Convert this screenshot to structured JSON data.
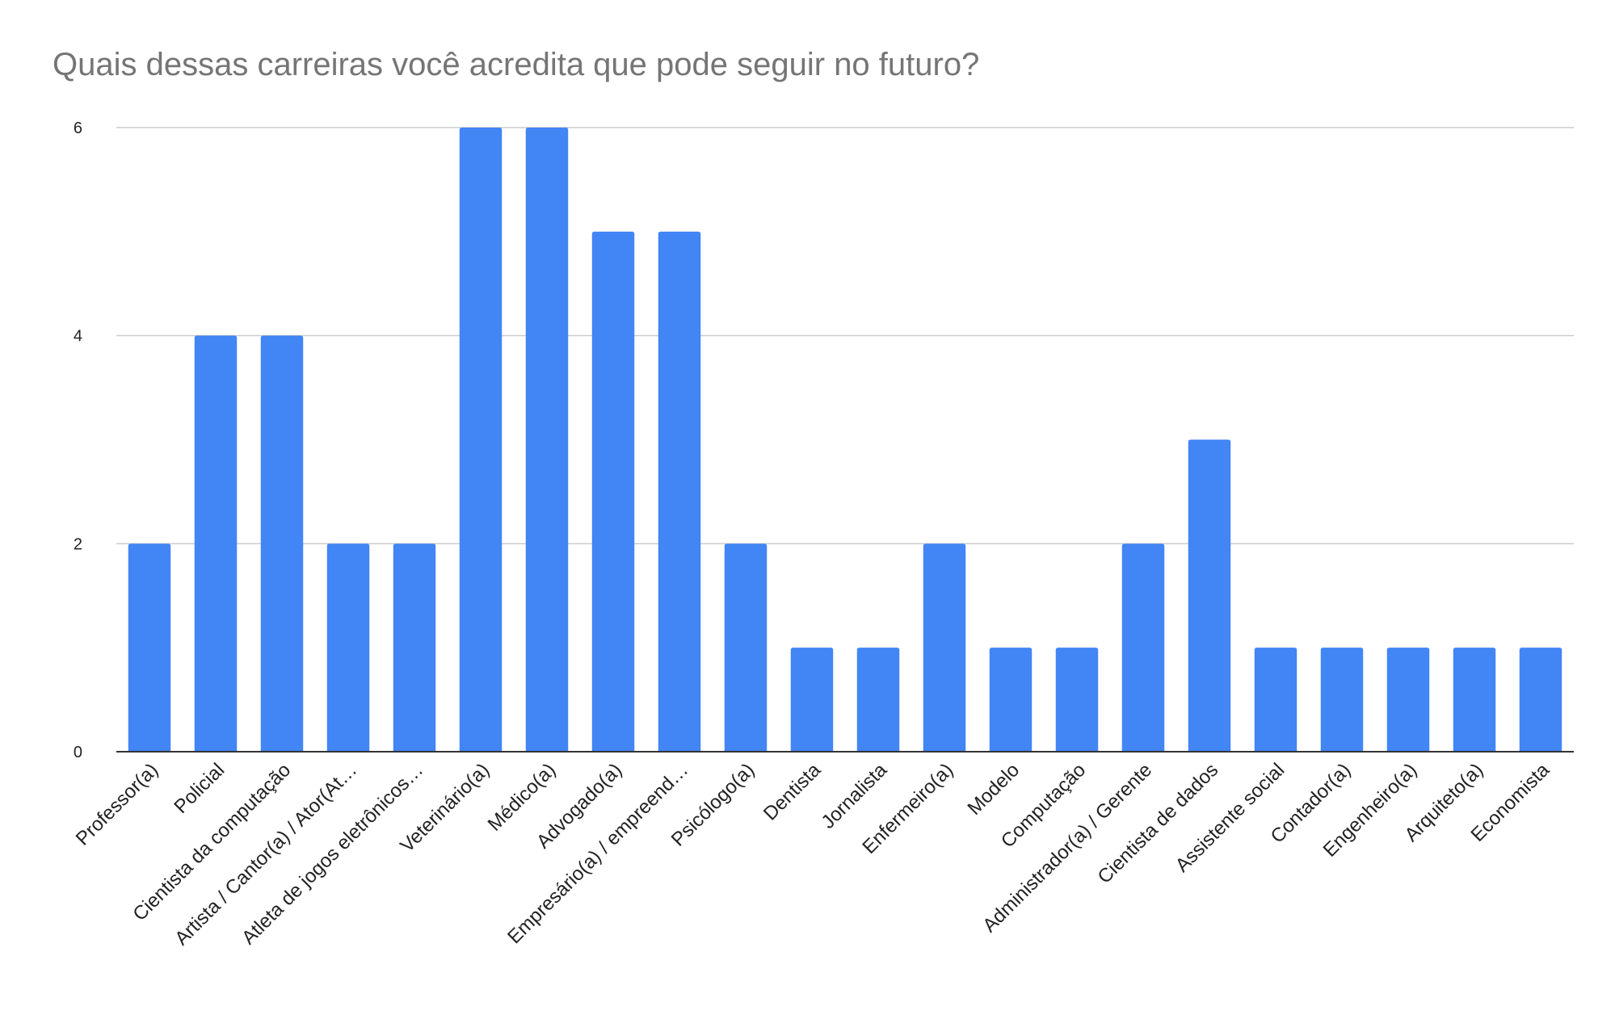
{
  "chart_data": {
    "type": "bar",
    "title": "Quais dessas carreiras você acredita que pode seguir no futuro?",
    "xlabel": "",
    "ylabel": "",
    "ylim": [
      0,
      6
    ],
    "yticks": [
      0,
      2,
      4,
      6
    ],
    "grid": true,
    "bar_color": "#4285F4",
    "categories": [
      "Professor(a)",
      "Policial",
      "Cientista da computação",
      "Artista / Cantor(a) / Ator(At…",
      "Atleta de jogos eletrônicos…",
      "Veterinário(a)",
      "Médico(a)",
      "Advogado(a)",
      "Empresário(a) / empreend…",
      "Psicólogo(a)",
      "Dentista",
      "Jornalista",
      "Enfermeiro(a)",
      "Modelo",
      "Computação",
      "Administrador(a) / Gerente",
      "Cientista de dados",
      "Assistente social",
      "Contador(a)",
      "Engenheiro(a)",
      "Arquiteto(a)",
      "Economista"
    ],
    "values": [
      2,
      4,
      4,
      2,
      2,
      6,
      6,
      5,
      5,
      2,
      1,
      1,
      2,
      1,
      1,
      2,
      3,
      1,
      1,
      1,
      1,
      1
    ]
  }
}
